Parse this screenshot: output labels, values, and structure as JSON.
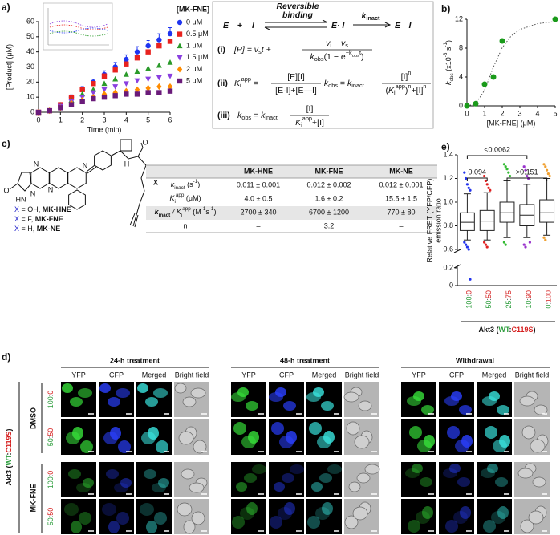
{
  "panel_labels": [
    "a)",
    "b)",
    "c)",
    "d)",
    "e)"
  ],
  "chart_data": [
    {
      "type": "scatter",
      "x_label": "Time (min)",
      "y_label": "[Product] (μM)",
      "legend_title": "[MK-FNE]",
      "x": [
        0,
        0.5,
        1,
        1.5,
        2,
        2.5,
        3,
        3.5,
        4,
        4.5,
        5,
        5.5,
        6
      ],
      "xlim": [
        0,
        6
      ],
      "xticks": [
        0,
        1,
        2,
        3,
        4,
        5,
        6
      ],
      "ylim": [
        0,
        60
      ],
      "yticks": [
        0,
        10,
        20,
        30,
        40,
        50,
        60
      ],
      "series": [
        {
          "name": "0 μM",
          "color": "#1f35f0",
          "marker": "circle",
          "values": [
            0,
            1,
            5,
            10,
            15,
            20,
            25,
            30,
            35,
            40,
            44,
            48,
            52
          ],
          "errors": [
            0,
            0.5,
            1,
            1.5,
            2,
            2,
            2.5,
            3,
            3,
            3.5,
            3.5,
            4,
            4
          ]
        },
        {
          "name": "0.5 μM",
          "color": "#e8221e",
          "marker": "square",
          "values": [
            0,
            1,
            5,
            10,
            15,
            19,
            24,
            28,
            32,
            36,
            40,
            44,
            47
          ]
        },
        {
          "name": "1 μM",
          "color": "#2a9a2a",
          "marker": "triangle",
          "values": [
            0,
            1,
            4,
            8,
            12,
            15,
            19,
            22,
            25,
            27,
            29,
            31,
            33
          ]
        },
        {
          "name": "1.5 μM",
          "color": "#8a3fe0",
          "marker": "triangle-down",
          "values": [
            0,
            1,
            4,
            7,
            10,
            13,
            15,
            17,
            19,
            21,
            22,
            23,
            24
          ]
        },
        {
          "name": "2 μM",
          "color": "#ff8c00",
          "marker": "diamond",
          "values": [
            0,
            1,
            3,
            6,
            8,
            10,
            12,
            13,
            14,
            15,
            16,
            17,
            17
          ]
        },
        {
          "name": "5 μM",
          "color": "#6a1b7a",
          "marker": "square",
          "values": [
            0,
            1,
            3,
            5,
            7,
            9,
            10,
            11,
            12,
            12,
            13,
            13,
            14
          ]
        }
      ]
    },
    {
      "type": "scatter",
      "x_label": "[MK-FNE] (μM)",
      "y_label": [
        {
          "t": "k",
          "style": "it"
        },
        {
          "t": "obs",
          "style": "sub"
        },
        " (x10",
        {
          "t": "-3",
          "style": "sup"
        },
        " s",
        {
          "t": "-1",
          "style": "sup"
        },
        ")"
      ],
      "x": [
        0,
        0.5,
        1,
        1.5,
        2,
        5
      ],
      "values": [
        0,
        0.3,
        3,
        4,
        9,
        12
      ],
      "color": "#1a9a1a",
      "fit": {
        "x": [
          0,
          0.5,
          1,
          1.5,
          2,
          2.5,
          3,
          4,
          5
        ],
        "values": [
          0,
          0.28,
          2.18,
          5.38,
          8.06,
          9.68,
          10.58,
          11.39,
          11.69
        ],
        "style": "dotted"
      },
      "xlim": [
        0,
        5
      ],
      "xticks": [
        0,
        1,
        2,
        3,
        4,
        5
      ],
      "ylim": [
        0,
        12
      ],
      "yticks": [
        0,
        4,
        8,
        12
      ]
    },
    {
      "type": "box",
      "y_label": [
        "Relative FRET (YFP/CFP)",
        "emission ratio"
      ],
      "categories": [
        "100:0",
        "50:50",
        "25:75",
        "10:90",
        "0:100"
      ],
      "category_colors": [
        "#2e9e3e",
        "#d62020"
      ],
      "group_label": [
        "Akt3 (",
        {
          "t": "WT",
          "color": "#2e9e3e"
        },
        ":",
        {
          "t": "C119S",
          "color": "#d62020"
        },
        ")"
      ],
      "ylim": [
        0,
        1.4
      ],
      "axis_break": [
        0.2,
        0.6
      ],
      "yticks": [
        0,
        0.2,
        0.6,
        0.8,
        {
          "value": 1,
          "label": "1.0"
        },
        1.2,
        1.4
      ],
      "stats": [
        {
          "color": "#2233ee",
          "min": 0.68,
          "q1": 0.76,
          "median": 0.83,
          "q3": 0.91,
          "max": 1.07,
          "outliers": [
            1.25,
            1.2,
            1.15,
            1.12,
            1.1,
            0.66,
            0.64,
            0.62,
            0.6,
            0.07
          ]
        },
        {
          "color": "#e02020",
          "min": 0.68,
          "q1": 0.76,
          "median": 0.84,
          "q3": 0.93,
          "max": 1.08,
          "outliers": [
            1.22,
            1.18,
            1.15,
            1.12,
            1.1,
            0.66,
            0.64,
            0.62
          ]
        },
        {
          "color": "#33bb33",
          "min": 0.7,
          "q1": 0.83,
          "median": 0.91,
          "q3": 1,
          "max": 1.18,
          "outliers": [
            1.32,
            1.3,
            1.28,
            1.25,
            1.22,
            0.66,
            0.64
          ]
        },
        {
          "color": "#9933cc",
          "min": 0.7,
          "q1": 0.8,
          "median": 0.89,
          "q3": 0.98,
          "max": 1.15,
          "outliers": [
            1.3,
            1.27,
            1.22,
            1.2,
            0.66,
            0.64,
            0.62
          ]
        },
        {
          "color": "#f0a030",
          "min": 0.72,
          "q1": 0.83,
          "median": 0.91,
          "q3": 1.02,
          "max": 1.2,
          "outliers": [
            1.32,
            1.3,
            1.27,
            1.24,
            1.22,
            0.7,
            0.68
          ]
        }
      ],
      "comparisons": [
        {
          "from": 0,
          "to": 3,
          "label": "<0.0062"
        },
        {
          "from": 0,
          "to": 1,
          "label": "0.094"
        },
        {
          "from": 2,
          "to": 4,
          "label": ">0.151"
        }
      ]
    }
  ],
  "equations": {
    "reaction": {
      "E": "E",
      "plus": "+",
      "I": "I",
      "binding": [
        "Reversible",
        "binding"
      ],
      "complex": "E· I",
      "rate": [
        {
          "t": "k",
          "style": "b it"
        },
        {
          "t": "inact",
          "style": "b sub"
        }
      ],
      "product": "E—I"
    },
    "eq1": {
      "label": "(i)",
      "lhs": [
        {
          "t": "[P] = v",
          "style": "it"
        },
        {
          "t": "s",
          "style": "sub"
        },
        {
          "t": "t +",
          "style": "it"
        }
      ],
      "num": [
        {
          "t": "v",
          "style": "it"
        },
        {
          "t": "i",
          "style": "sub"
        },
        {
          "t": " − v",
          "style": "it"
        },
        {
          "t": "s",
          "style": "sub"
        }
      ],
      "den": [
        {
          "t": "k",
          "style": "it"
        },
        {
          "t": "obs",
          "style": "sub"
        },
        "(1 − e",
        {
          "t": "−k",
          "style": "sup"
        },
        {
          "t": "obs",
          "style": "supsub"
        },
        {
          "t": "t",
          "style": "sup"
        },
        ")"
      ]
    },
    "eq2": {
      "label": "(ii)",
      "lhs": [
        {
          "t": "K",
          "style": "it"
        },
        {
          "t": "i",
          "style": "sub"
        },
        {
          "t": "app",
          "style": "sup"
        },
        " ="
      ],
      "num": "[E][I]",
      "den": "[E·I]+[E—I]",
      "mid": [
        ";",
        {
          "t": "k",
          "style": "it"
        },
        {
          "t": "obs",
          "style": "sub"
        },
        " = ",
        {
          "t": "k",
          "style": "it"
        },
        {
          "t": "inact",
          "style": "sub"
        }
      ],
      "num2": [
        "[I]",
        {
          "t": "n",
          "style": "sup"
        }
      ],
      "den2": [
        "(",
        {
          "t": "K",
          "style": "it"
        },
        {
          "t": "i",
          "style": "sub"
        },
        {
          "t": "app",
          "style": "sup"
        },
        ")",
        {
          "t": "n",
          "style": "sup"
        },
        "+[I]",
        {
          "t": "n",
          "style": "sup"
        }
      ]
    },
    "eq3": {
      "label": "(iii)",
      "lhs": [
        {
          "t": "k",
          "style": "it"
        },
        {
          "t": "obs",
          "style": "sub"
        },
        " = ",
        {
          "t": "k",
          "style": "it"
        },
        {
          "t": "inact",
          "style": "sub"
        }
      ],
      "num": "[I]",
      "den": [
        {
          "t": "K",
          "style": "it"
        },
        {
          "t": "i",
          "style": "sub"
        },
        {
          "t": "app",
          "style": "sup"
        },
        "+[I]"
      ]
    }
  },
  "structure": {
    "atoms": [
      "O",
      "N",
      "HN",
      "N",
      "N",
      "N",
      "H",
      "O",
      "X"
    ],
    "legend": [
      [
        {
          "t": "X",
          "color": "#2222cc"
        },
        " = OH, ",
        {
          "t": "MK-HNE",
          "style": "b"
        }
      ],
      [
        {
          "t": "X",
          "color": "#2222cc"
        },
        " = F, ",
        {
          "t": "MK-FNE",
          "style": "b"
        }
      ],
      [
        {
          "t": "X",
          "color": "#2222cc"
        },
        " = H, ",
        {
          "t": "MK-NE",
          "style": "b"
        }
      ]
    ]
  },
  "table": {
    "header": [
      "MK-HNE",
      "MK-FNE",
      "MK-NE"
    ],
    "header_colors": [
      "#f08a1c",
      "#2233cc",
      "#111111"
    ],
    "rows": [
      {
        "label": [
          {
            "t": "k",
            "style": "it"
          },
          {
            "t": "inact",
            "style": "sub"
          },
          " (s",
          {
            "t": "-1",
            "style": "sup"
          },
          ")"
        ],
        "cells": [
          "0.011 ± 0.001",
          "0.012 ± 0.002",
          "0.012 ± 0.001"
        ]
      },
      {
        "label": [
          {
            "t": "K",
            "style": "it"
          },
          {
            "t": "i",
            "style": "sub"
          },
          {
            "t": "app",
            "style": "sup"
          },
          " (μM)"
        ],
        "cells": [
          "4.0 ± 0.5",
          "1.6 ± 0.2",
          "15.5 ± 1.5"
        ]
      },
      {
        "label": [
          {
            "t": "k",
            "style": "b it"
          },
          {
            "t": "inact",
            "style": "b sub"
          },
          {
            "t": " / K",
            "style": "it"
          },
          {
            "t": "i",
            "style": "sub"
          },
          {
            "t": "app",
            "style": "sup"
          },
          " (M",
          {
            "t": "-1",
            "style": "sup"
          },
          "s",
          {
            "t": "-1",
            "style": "sup"
          },
          ")"
        ],
        "cells": [
          "2700 ± 340",
          "6700 ± 1200",
          "770 ± 80"
        ]
      },
      {
        "label": "n",
        "cells": [
          "–",
          "3.2",
          "–"
        ]
      }
    ]
  },
  "microscopy": {
    "groups": [
      "24-h treatment",
      "48-h treatment",
      "Withdrawal"
    ],
    "channels": [
      "YFP",
      "CFP",
      "Merged",
      "Bright field"
    ],
    "conditions": [
      "DMSO",
      "MK-FNE"
    ],
    "condition_colors": [
      "#111111",
      "#2233cc"
    ],
    "ratios": [
      "100:0",
      "50:50"
    ],
    "ratio_colors": [
      "#2e9e3e",
      "#d62020"
    ],
    "side_label": [
      "Akt3 (",
      {
        "t": "WT",
        "color": "#2e9e3e"
      },
      ":",
      {
        "t": "C119S",
        "color": "#d62020"
      },
      ")"
    ]
  }
}
